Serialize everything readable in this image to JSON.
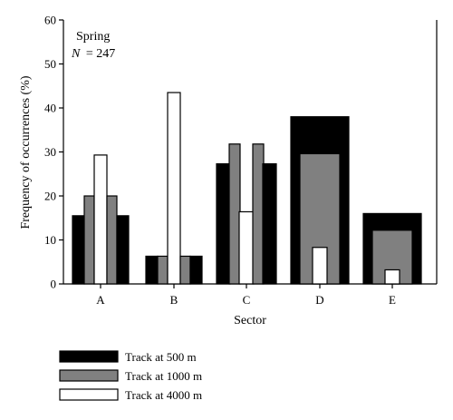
{
  "chart_data": {
    "type": "bar",
    "annotation": {
      "season": "Spring",
      "n_label": "N",
      "n_value": "= 247"
    },
    "xlabel": "Sector",
    "ylabel": "Frequency of occurrences (%)",
    "ylim": [
      0,
      60
    ],
    "yticks": [
      "0",
      "10",
      "20",
      "30",
      "40",
      "50",
      "60"
    ],
    "categories": [
      "A",
      "B",
      "C",
      "D",
      "E"
    ],
    "series": [
      {
        "name": "Track at 500 m",
        "color": "#000000",
        "values": [
          15.5,
          6.3,
          27.3,
          38.0,
          16.0
        ]
      },
      {
        "name": "Track at 1000 m",
        "color": "#808080",
        "values": [
          20.0,
          6.3,
          31.8,
          29.6,
          12.2
        ]
      },
      {
        "name": "Track at 4000 m",
        "color": "#ffffff",
        "values": [
          29.3,
          43.5,
          16.4,
          8.3,
          3.2
        ]
      }
    ],
    "grid": false,
    "legend_position": "bottom-left"
  }
}
